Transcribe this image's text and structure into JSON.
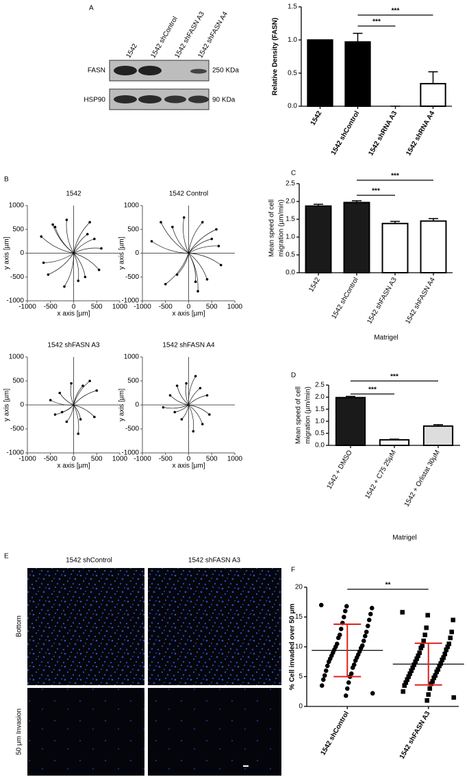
{
  "panel_labels": [
    "A",
    "B",
    "C",
    "D",
    "E",
    "F"
  ],
  "blot": {
    "lanes": [
      "1542",
      "1542 shControl",
      "1542 shFASN A3",
      "1542 shFASN A4"
    ],
    "rows": [
      {
        "label": "FASN",
        "size": "250 KDa"
      },
      {
        "label": "HSP90",
        "size": "90 KDa"
      }
    ]
  },
  "images": {
    "columns": [
      "1542 shControl",
      "1542 shFASN A3"
    ],
    "rows": [
      "Bottom",
      "50 μm Invasion"
    ]
  },
  "chart_data": [
    {
      "type": "bar",
      "ylabel": "Relative Density (FASN)",
      "categories": [
        "1542",
        "1542 shControl",
        "1542 shRNA A3",
        "1542 shRNA A4"
      ],
      "values": [
        1,
        0.97,
        0,
        0.34
      ],
      "errors": [
        0,
        0.13,
        0,
        0.18
      ],
      "colors": [
        "#000000",
        "#000000",
        "#ffffff",
        "#ffffff"
      ],
      "ylim": [
        0,
        1.5
      ],
      "yticks": [
        {
          "value": 0,
          "label": "0.0"
        },
        {
          "value": 0.5,
          "label": "0.5"
        },
        {
          "value": 1,
          "label": "1.0"
        },
        {
          "value": 1.5,
          "label": "1.5"
        }
      ],
      "annotations": [
        "***",
        "***"
      ]
    },
    {
      "type": "scatter",
      "title": "1542",
      "xlabel": "x axis [µm]",
      "ylabel": "y axis [µm]",
      "x": [
        -700,
        -650,
        -450,
        -400,
        -200,
        100,
        300,
        450,
        600,
        550,
        -150,
        250,
        -550,
        350
      ],
      "y": [
        350,
        -200,
        600,
        550,
        -700,
        -580,
        400,
        300,
        100,
        -350,
        700,
        -500,
        -450,
        650
      ],
      "xlim": [
        -1000,
        1000
      ],
      "ylim": [
        -1000,
        1000
      ],
      "xticks": [
        -1000,
        -500,
        0,
        500,
        1000
      ],
      "yticks": [
        -1000,
        -500,
        0,
        500,
        1000
      ]
    },
    {
      "type": "scatter",
      "title": "1542 Control",
      "xlabel": "x axis [µm]",
      "ylabel": "y axis [µm]",
      "x": [
        -800,
        -600,
        -350,
        -250,
        150,
        300,
        500,
        650,
        700,
        200,
        -100,
        -500,
        400,
        600
      ],
      "y": [
        250,
        650,
        550,
        -450,
        -600,
        650,
        300,
        150,
        -250,
        -800,
        750,
        -650,
        -550,
        500
      ],
      "xlim": [
        -1000,
        1000
      ],
      "ylim": [
        -1000,
        1000
      ],
      "xticks": [
        -1000,
        -500,
        0,
        500,
        1000
      ],
      "yticks": [
        -1000,
        -500,
        0,
        500,
        1000
      ]
    },
    {
      "type": "scatter",
      "title": "1542 shFASN A3",
      "xlabel": "x axis [µm]",
      "ylabel": "y axis [µm]",
      "x": [
        -500,
        -400,
        -300,
        -150,
        100,
        200,
        350,
        500,
        450,
        -50,
        150,
        -250
      ],
      "y": [
        100,
        -200,
        250,
        -350,
        -600,
        400,
        500,
        300,
        -250,
        450,
        -300,
        -150
      ],
      "xlim": [
        -1000,
        1000
      ],
      "ylim": [
        -1000,
        1000
      ],
      "xticks": [
        -1000,
        -500,
        0,
        500,
        1000
      ],
      "yticks": [
        -1000,
        -500,
        0,
        500,
        1000
      ]
    },
    {
      "type": "scatter",
      "title": "1542 shFASN A4",
      "xlabel": "x axis [µm]",
      "ylabel": "y axis [µm]",
      "x": [
        -550,
        -400,
        -250,
        -150,
        100,
        250,
        400,
        450,
        150,
        -50,
        300,
        -300
      ],
      "y": [
        -50,
        200,
        400,
        -300,
        -550,
        350,
        200,
        -200,
        600,
        450,
        -400,
        -150
      ],
      "xlim": [
        -1000,
        1000
      ],
      "ylim": [
        -1000,
        1000
      ],
      "xticks": [
        -1000,
        -500,
        0,
        500,
        1000
      ],
      "yticks": [
        -1000,
        -500,
        0,
        500,
        1000
      ]
    },
    {
      "type": "bar",
      "ylabel": [
        "Mean speed of cell",
        "migration (µm/min)"
      ],
      "xlabel": "Matrigel",
      "categories": [
        "1542",
        "1542 shControl",
        "1542 shFASN A3",
        "1542 shFASN A4"
      ],
      "values": [
        1.87,
        1.97,
        1.38,
        1.45
      ],
      "errors": [
        0.05,
        0.05,
        0.06,
        0.07
      ],
      "colors": [
        "#1a1a1a",
        "#1a1a1a",
        "#ffffff",
        "#ffffff"
      ],
      "ylim": [
        0,
        2.5
      ],
      "yticks": [
        {
          "value": 0,
          "label": "0.0"
        },
        {
          "value": 0.5,
          "label": "0.5"
        },
        {
          "value": 1,
          "label": "1.0"
        },
        {
          "value": 1.5,
          "label": "1.5"
        },
        {
          "value": 2,
          "label": "2.0"
        },
        {
          "value": 2.5,
          "label": "2.5"
        }
      ],
      "annotations": [
        "***",
        "***"
      ]
    },
    {
      "type": "bar",
      "ylabel": [
        "Mean speed of cell",
        "migration (µm/min)"
      ],
      "xlabel": "Matrigel",
      "categories": [
        "1542 + DMSO",
        "1542 + C75 25μM",
        "1542 + Orlistat 30μM"
      ],
      "values": [
        1.98,
        0.23,
        0.8
      ],
      "errors": [
        0.05,
        0.03,
        0.06
      ],
      "colors": [
        "#1a1a1a",
        "#ffffff",
        "#dddddd"
      ],
      "ylim": [
        0,
        2.5
      ],
      "yticks": [
        {
          "value": 0,
          "label": "0.0"
        },
        {
          "value": 0.5,
          "label": "0.5"
        },
        {
          "value": 1,
          "label": "1.0"
        },
        {
          "value": 1.5,
          "label": "1.5"
        },
        {
          "value": 2,
          "label": "2.0"
        },
        {
          "value": 2.5,
          "label": "2.5"
        }
      ],
      "annotations": [
        "***",
        "***"
      ]
    },
    {
      "type": "strip",
      "ylabel": "% Cell invaded over 50 μm",
      "categories": [
        "1542 shControl",
        "1542 shFASN A3"
      ],
      "values": [
        [
          17,
          16.8,
          16.5,
          16,
          15.5,
          15,
          14.5,
          14,
          13.5,
          13,
          12.5,
          12,
          11.8,
          11.5,
          11,
          10.5,
          10.2,
          10,
          9.8,
          9.5,
          9.2,
          9,
          8.7,
          8.5,
          8.2,
          8,
          7.7,
          7.5,
          7,
          6.8,
          6.5,
          6,
          5.5,
          5.2,
          5,
          4.5,
          4,
          3.5,
          3,
          2.2,
          1.8
        ],
        [
          15.8,
          15.3,
          14.5,
          13.2,
          12.5,
          12,
          11.5,
          11,
          10.5,
          10.2,
          10,
          9.8,
          9.5,
          9,
          8.8,
          8.5,
          8.2,
          8,
          7.8,
          7.5,
          7.2,
          7,
          6.8,
          6.5,
          6.2,
          6,
          5.8,
          5.5,
          5.2,
          5,
          4.8,
          4.5,
          4.2,
          4,
          3.8,
          3.5,
          3,
          2.5,
          2,
          1.5,
          1
        ]
      ],
      "means": [
        9.4,
        7.1
      ],
      "sd": [
        4.4,
        3.5
      ],
      "ylim": [
        0,
        20
      ],
      "yticks": [
        0,
        5,
        10,
        15,
        20
      ],
      "annotations": [
        "**"
      ]
    }
  ]
}
